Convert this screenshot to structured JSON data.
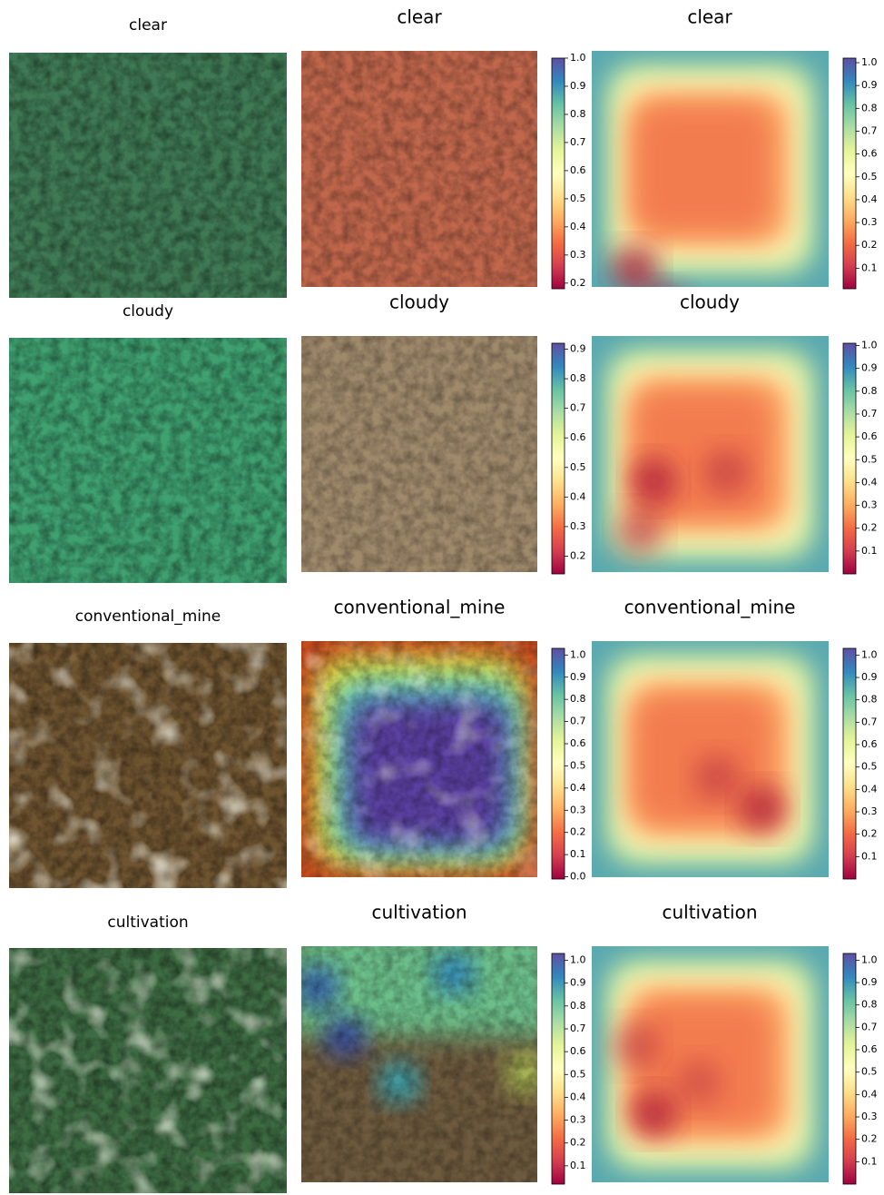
{
  "rows": [
    {
      "titles": [
        "clear",
        "clear",
        "clear"
      ],
      "colorbars": [
        {
          "lim": [
            0.18,
            1.0
          ],
          "ticks": [
            {
              "value": 1,
              "label": "1.0"
            },
            0.9,
            0.8,
            0.7,
            0.6,
            0.5,
            0.4,
            0.3,
            0.2
          ]
        },
        {
          "lim": [
            0.01,
            1.02
          ],
          "ticks": [
            {
              "value": 1,
              "label": "1.0"
            },
            0.9,
            0.8,
            0.7,
            0.6,
            0.5,
            0.4,
            0.3,
            0.2,
            0.1
          ]
        }
      ]
    },
    {
      "titles": [
        "cloudy",
        "cloudy",
        "cloudy"
      ],
      "colorbars": [
        {
          "lim": [
            0.14,
            0.92
          ],
          "ticks": [
            0.9,
            0.8,
            0.7,
            0.6,
            0.5,
            0.4,
            0.3,
            0.2
          ]
        },
        {
          "lim": [
            0.0,
            1.01
          ],
          "ticks": [
            {
              "value": 1,
              "label": "1.0"
            },
            0.9,
            0.8,
            0.7,
            0.6,
            0.5,
            0.4,
            0.3,
            0.2,
            0.1
          ]
        }
      ]
    },
    {
      "titles": [
        "conventional_mine",
        "conventional_mine",
        "conventional_mine"
      ],
      "colorbars": [
        {
          "lim": [
            -0.01,
            1.03
          ],
          "ticks": [
            {
              "value": 1,
              "label": "1.0"
            },
            0.9,
            0.8,
            0.7,
            0.6,
            0.5,
            0.4,
            0.3,
            0.2,
            0.1,
            {
              "value": 0,
              "label": "0.0"
            }
          ]
        },
        {
          "lim": [
            0.0,
            1.03
          ],
          "ticks": [
            {
              "value": 1,
              "label": "1.0"
            },
            0.9,
            0.8,
            0.7,
            0.6,
            0.5,
            0.4,
            0.3,
            0.2,
            0.1
          ]
        }
      ]
    },
    {
      "titles": [
        "cultivation",
        "cultivation",
        "cultivation"
      ],
      "colorbars": [
        {
          "lim": [
            0.02,
            1.03
          ],
          "ticks": [
            {
              "value": 1,
              "label": "1.0"
            },
            0.9,
            0.8,
            0.7,
            0.6,
            0.5,
            0.4,
            0.3,
            0.2,
            0.1
          ]
        },
        {
          "lim": [
            0.0,
            1.03
          ],
          "ticks": [
            {
              "value": 1,
              "label": "1.0"
            },
            0.9,
            0.8,
            0.7,
            0.6,
            0.5,
            0.4,
            0.3,
            0.2,
            0.1
          ]
        }
      ]
    }
  ]
}
